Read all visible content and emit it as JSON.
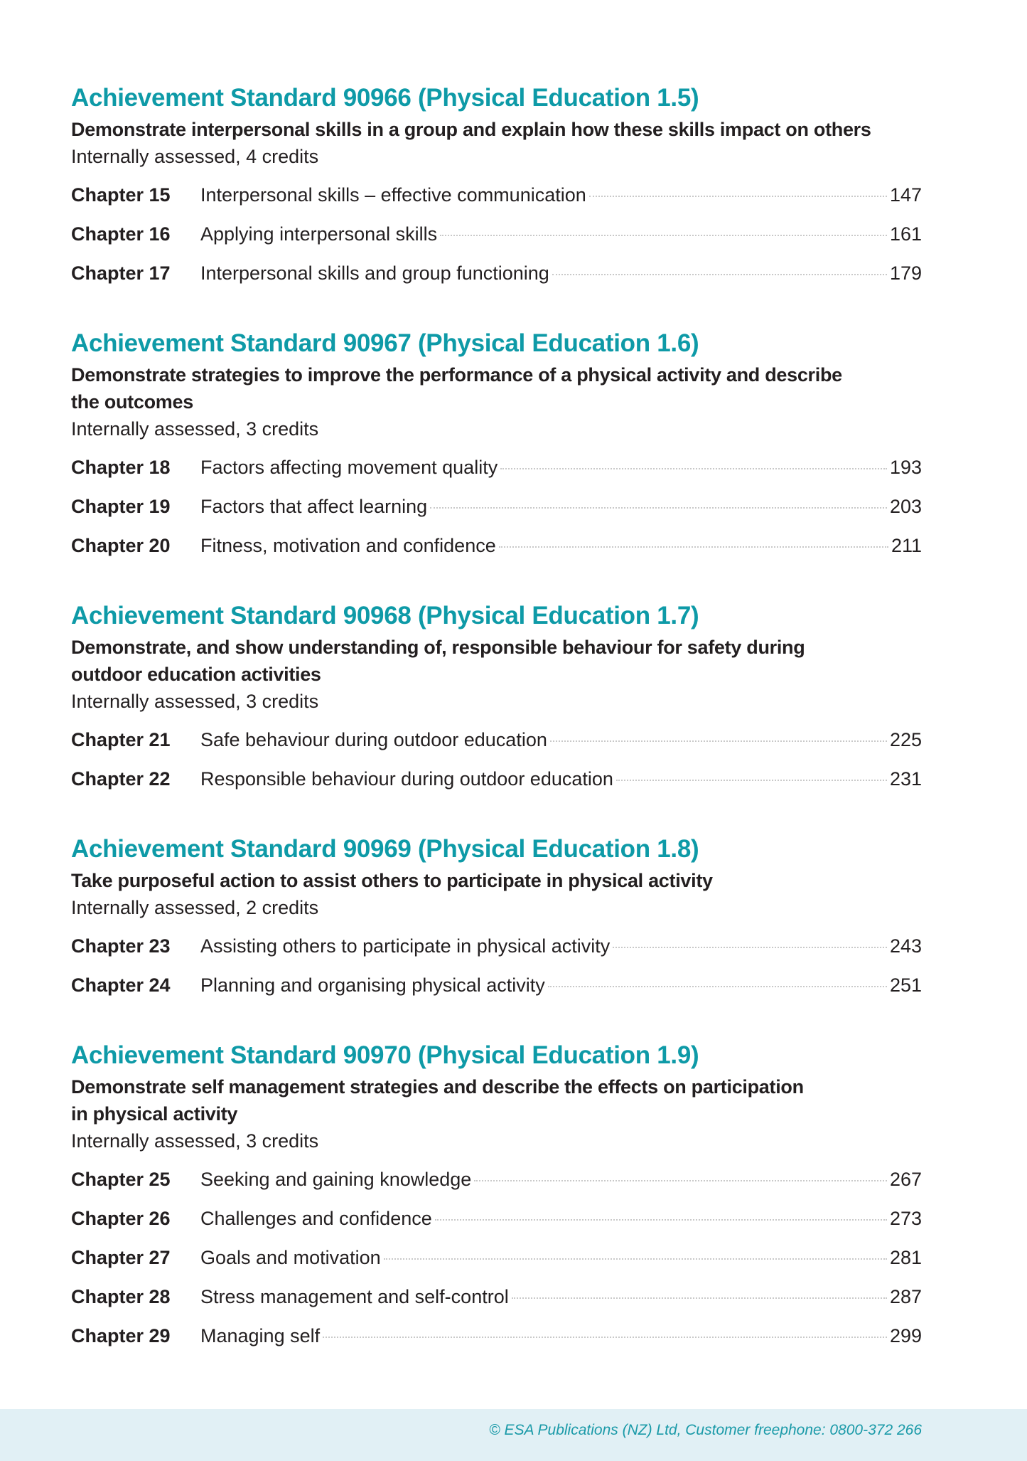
{
  "sections": [
    {
      "heading": "Achievement Standard 90966 (Physical Education 1.5)",
      "description": [
        "Demonstrate interpersonal skills in a group and explain how these skills impact on others"
      ],
      "assessment": "Internally assessed, 4 credits",
      "chapters": [
        {
          "label": "Chapter 15",
          "title": "Interpersonal skills – effective communication",
          "page": "147"
        },
        {
          "label": "Chapter 16",
          "title": "Applying interpersonal skills",
          "page": "161"
        },
        {
          "label": "Chapter 17",
          "title": "Interpersonal skills and group functioning",
          "page": "179"
        }
      ]
    },
    {
      "heading": "Achievement Standard 90967 (Physical Education 1.6)",
      "description": [
        "Demonstrate strategies to improve the performance of a physical activity and describe",
        "the outcomes"
      ],
      "assessment": "Internally assessed, 3 credits",
      "chapters": [
        {
          "label": "Chapter 18",
          "title": "Factors affecting movement quality",
          "page": "193"
        },
        {
          "label": "Chapter 19",
          "title": "Factors that affect learning",
          "page": "203"
        },
        {
          "label": "Chapter 20",
          "title": "Fitness, motivation and confidence",
          "page": "211"
        }
      ]
    },
    {
      "heading": "Achievement Standard 90968 (Physical Education 1.7)",
      "description": [
        "Demonstrate, and show understanding of, responsible behaviour for safety during",
        "outdoor education activities"
      ],
      "assessment": "Internally assessed, 3 credits",
      "chapters": [
        {
          "label": "Chapter 21",
          "title": "Safe behaviour during outdoor education",
          "page": "225"
        },
        {
          "label": "Chapter 22",
          "title": "Responsible behaviour during outdoor education",
          "page": "231"
        }
      ]
    },
    {
      "heading": "Achievement Standard 90969 (Physical Education 1.8)",
      "description": [
        "Take purposeful action to assist others to participate in physical activity"
      ],
      "assessment": "Internally assessed, 2 credits",
      "chapters": [
        {
          "label": "Chapter 23",
          "title": "Assisting others to participate in physical activity",
          "page": "243"
        },
        {
          "label": "Chapter 24",
          "title": "Planning and organising physical activity",
          "page": "251"
        }
      ]
    },
    {
      "heading": "Achievement Standard 90970 (Physical Education 1.9)",
      "description": [
        "Demonstrate self management strategies and describe the effects on participation",
        "in physical activity"
      ],
      "assessment": "Internally assessed, 3 credits",
      "chapters": [
        {
          "label": "Chapter 25",
          "title": "Seeking and gaining knowledge",
          "page": "267"
        },
        {
          "label": "Chapter 26",
          "title": "Challenges and confidence",
          "page": "273"
        },
        {
          "label": "Chapter 27",
          "title": "Goals and motivation",
          "page": "281"
        },
        {
          "label": "Chapter 28",
          "title": "Stress management and self-control",
          "page": "287"
        },
        {
          "label": "Chapter 29",
          "title": "Managing self",
          "page": "299"
        }
      ]
    }
  ],
  "footer": {
    "text": "© ESA Publications (NZ) Ltd, Customer freephone: 0800-372 266"
  },
  "colors": {
    "heading": "#0e9aa7",
    "footer_bg": "#e1f0f5",
    "footer_text": "#1a9aa8"
  }
}
